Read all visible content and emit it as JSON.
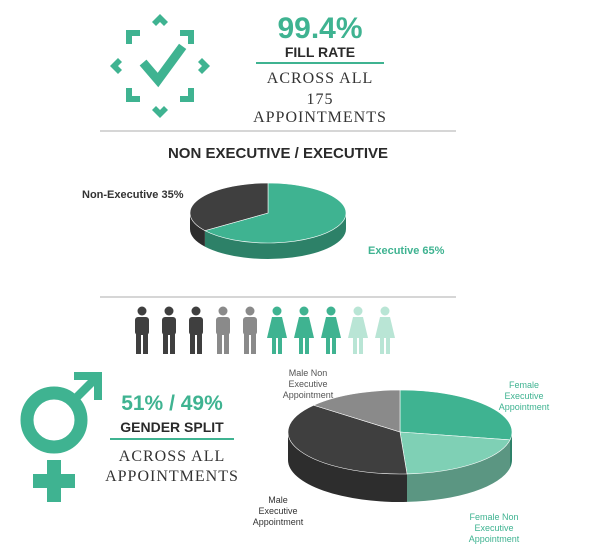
{
  "fill": {
    "percent": "99.4%",
    "label": "FILL RATE",
    "line1": "ACROSS ALL",
    "line2": "175 APPOINTMENTS"
  },
  "section1": {
    "title": "NON EXECUTIVE / EXECUTIVE"
  },
  "gender": {
    "percent": "51% / 49%",
    "label": "GENDER SPLIT",
    "line1": "ACROSS ALL",
    "line2": "APPOINTMENTS"
  },
  "colors": {
    "teal": "#3fb391",
    "light_teal": "#7fd0b5",
    "dark": "#3f3f3f",
    "gray": "#8a8a8a",
    "pale": "#b9e5d5"
  },
  "icons": [
    "check-icon",
    "male-symbol-icon",
    "female-symbol-icon",
    "person-icon"
  ],
  "people_row": [
    {
      "gender": "male",
      "color": "dark"
    },
    {
      "gender": "male",
      "color": "dark"
    },
    {
      "gender": "male",
      "color": "dark"
    },
    {
      "gender": "male",
      "color": "gray"
    },
    {
      "gender": "male",
      "color": "gray"
    },
    {
      "gender": "female",
      "color": "teal"
    },
    {
      "gender": "female",
      "color": "teal"
    },
    {
      "gender": "female",
      "color": "teal"
    },
    {
      "gender": "female",
      "color": "pale"
    },
    {
      "gender": "female",
      "color": "pale"
    }
  ],
  "chart_data": [
    {
      "type": "pie",
      "title": "NON EXECUTIVE / EXECUTIVE",
      "slices": [
        {
          "label": "Non-Executive 35%",
          "value": 35,
          "color": "#3f3f3f"
        },
        {
          "label": "Executive 65%",
          "value": 65,
          "color": "#3fb391"
        }
      ]
    },
    {
      "type": "pie",
      "slices": [
        {
          "label": "Female Executive Appointment",
          "value": 28,
          "color": "#3fb391"
        },
        {
          "label": "Female Non Executive Appointment",
          "value": 21,
          "color": "#7fd0b5"
        },
        {
          "label": "Male Executive Appointment",
          "value": 37,
          "color": "#3f3f3f"
        },
        {
          "label": "Male Non Executive Appointment",
          "value": 14,
          "color": "#8a8a8a"
        }
      ]
    }
  ]
}
